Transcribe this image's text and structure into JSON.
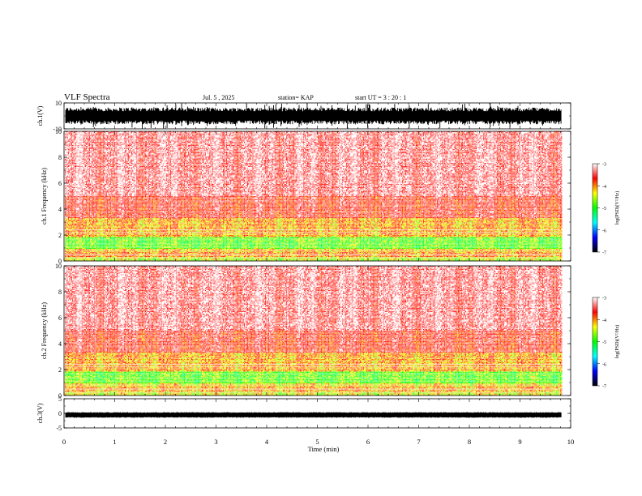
{
  "header": {
    "title": "VLF Spectra",
    "date": "Jul. 5 , 2025",
    "station": "station= KAP",
    "start": "start UT = 3 : 20 : 1"
  },
  "chart_data": [
    {
      "type": "line",
      "name": "ch1-waveform",
      "ylabel": "ch.1(V)",
      "ylim": [
        -10,
        10
      ],
      "yticks": [
        -10,
        10
      ],
      "xlim": [
        0,
        10
      ],
      "x_end": 9.82,
      "amplitude_typical": [
        -6.5,
        6.5
      ],
      "amplitude_peak": [
        -10,
        10
      ],
      "grid": false
    },
    {
      "type": "heatmap",
      "name": "ch1-spectrogram",
      "ylabel": "ch.1 Frequency (kHz)",
      "ylim": [
        0,
        10
      ],
      "yticks": [
        "0",
        "2",
        "4",
        "6",
        "8",
        "10"
      ],
      "xlim": [
        0,
        10
      ],
      "x_end": 9.82,
      "bands": [
        {
          "f": [
            0,
            0.3
          ],
          "level": -4.5
        },
        {
          "f": [
            0.3,
            0.7
          ],
          "level": -4.0
        },
        {
          "f": [
            0.7,
            1.0
          ],
          "level": -4.2
        },
        {
          "f": [
            1.0,
            1.9
          ],
          "level": -4.8
        },
        {
          "f": [
            1.9,
            3.3
          ],
          "level": -4.1
        },
        {
          "f": [
            3.3,
            5.0
          ],
          "level": -3.6
        },
        {
          "f": [
            5.0,
            10.0
          ],
          "level": -3.3
        }
      ],
      "colorbar": {
        "label": "log(PSD)(V²/Hz)",
        "range": [
          -7,
          -3
        ],
        "ticks": [
          "-3",
          "-4",
          "-5",
          "-6",
          "-7"
        ],
        "colors": [
          "#ffffff",
          "#ff0000",
          "#ffff00",
          "#00ff00",
          "#00ffff",
          "#0000ff",
          "#000000"
        ]
      }
    },
    {
      "type": "heatmap",
      "name": "ch2-spectrogram",
      "ylabel": "ch.2 Frequency (kHz)",
      "ylim": [
        0,
        10
      ],
      "yticks": [
        "0",
        "2",
        "4",
        "6",
        "8",
        "10"
      ],
      "xlim": [
        0,
        10
      ],
      "x_end": 9.82,
      "bands": [
        {
          "f": [
            0,
            0.3
          ],
          "level": -4.4
        },
        {
          "f": [
            0.3,
            0.7
          ],
          "level": -4.1
        },
        {
          "f": [
            0.7,
            1.0
          ],
          "level": -4.3
        },
        {
          "f": [
            1.0,
            1.9
          ],
          "level": -4.8
        },
        {
          "f": [
            1.9,
            3.3
          ],
          "level": -4.1
        },
        {
          "f": [
            3.3,
            5.0
          ],
          "level": -3.6
        },
        {
          "f": [
            5.0,
            10.0
          ],
          "level": -3.3
        }
      ],
      "colorbar": {
        "label": "log(PSD)(V²/Hz)",
        "range": [
          -7,
          -3
        ],
        "ticks": [
          "-3",
          "-4",
          "-5",
          "-6",
          "-7"
        ],
        "colors": [
          "#ffffff",
          "#ff0000",
          "#ffff00",
          "#00ff00",
          "#00ffff",
          "#0000ff",
          "#000000"
        ]
      }
    },
    {
      "type": "line",
      "name": "ch3-waveform",
      "ylabel": "ch.3(V)",
      "ylim": [
        -5,
        5
      ],
      "yticks": [
        "-5",
        "0",
        "5"
      ],
      "xlim": [
        0,
        10
      ],
      "x_end": 9.82,
      "amplitude_typical": [
        -1.3,
        0.2
      ],
      "grid": false
    }
  ],
  "xaxis": {
    "label": "Time (min)",
    "ticks": [
      "0",
      "1",
      "2",
      "3",
      "4",
      "5",
      "6",
      "7",
      "8",
      "9",
      "10"
    ]
  }
}
